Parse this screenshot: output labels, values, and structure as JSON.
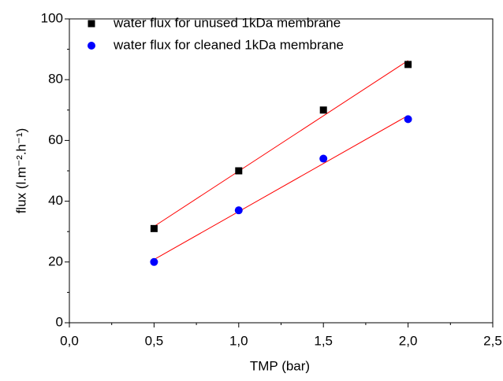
{
  "chart_data": {
    "type": "scatter",
    "xlabel": "TMP (bar)",
    "ylabel": "flux (l.m⁻².h⁻¹)",
    "xlim": [
      0,
      2.5
    ],
    "ylim": [
      0,
      100
    ],
    "xticks": [
      {
        "value": 0,
        "label": "0,0"
      },
      {
        "value": 0.5,
        "label": "0,5"
      },
      {
        "value": 1,
        "label": "1,0"
      },
      {
        "value": 1.5,
        "label": "1,5"
      },
      {
        "value": 2,
        "label": "2,0"
      },
      {
        "value": 2.5,
        "label": "2,5"
      }
    ],
    "yticks": [
      0,
      20,
      40,
      60,
      80,
      100
    ],
    "xminorticks": [
      0.25,
      0.75,
      1.25,
      1.75,
      2.25
    ],
    "yminorticks": [
      10,
      30,
      50,
      70,
      90
    ],
    "legend": "top-left",
    "series": [
      {
        "name": "water flux for unused 1kDa membrane",
        "color": "#000000",
        "marker": "square",
        "x": [
          0.5,
          1.0,
          1.5,
          2.0
        ],
        "values": [
          31,
          50,
          70,
          85
        ],
        "fit": {
          "color": "#ff0000",
          "x": [
            0.5,
            2.0
          ],
          "values": [
            31.7,
            86.3
          ]
        }
      },
      {
        "name": "water flux for cleaned 1kDa membrane",
        "color": "#0000ff",
        "marker": "circle",
        "x": [
          0.5,
          1.0,
          1.5,
          2.0
        ],
        "values": [
          20,
          37,
          54,
          67
        ],
        "fit": {
          "color": "#ff0000",
          "x": [
            0.5,
            2.0
          ],
          "values": [
            20.8,
            68.2
          ]
        }
      }
    ]
  }
}
